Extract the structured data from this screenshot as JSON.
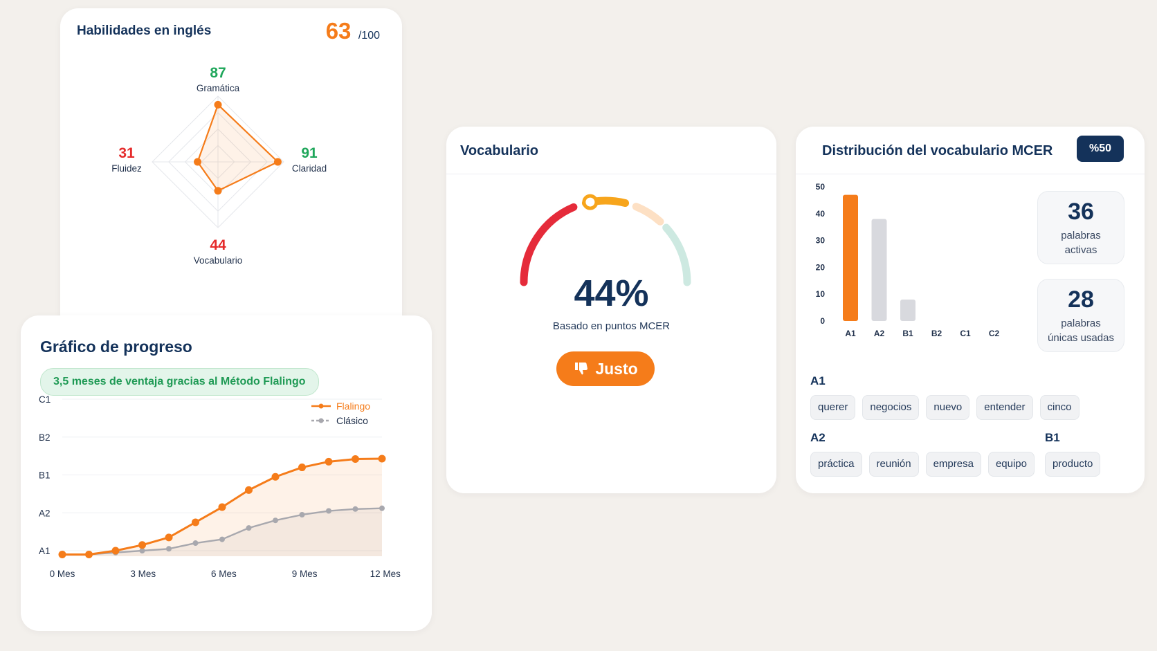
{
  "skills": {
    "title": "Habilidades en inglés",
    "score": "63",
    "score_max": "/100",
    "axes": [
      {
        "label": "Gramática",
        "value": 87,
        "color": "#1ea65a"
      },
      {
        "label": "Claridad",
        "value": 91,
        "color": "#1ea65a"
      },
      {
        "label": "Vocabulario",
        "value": 44,
        "color": "#e52b2b"
      },
      {
        "label": "Fluidez",
        "value": 31,
        "color": "#e52b2b"
      }
    ]
  },
  "progress": {
    "title": "Gráfico de progreso",
    "highlight": "3,5 meses de ventaja gracias al Método Flalingo"
  },
  "vocab": {
    "title": "Vocabulario",
    "percent": "44%",
    "subtitle": "Basado en puntos MCER",
    "verdict": "Justo"
  },
  "distribution": {
    "title": "Distribución del vocabulario MCER",
    "badge": "%50",
    "stats": [
      {
        "value": "36",
        "label_line1": "palabras",
        "label_line2": "activas"
      },
      {
        "value": "28",
        "label_line1": "palabras",
        "label_line2": "únicas usadas"
      }
    ],
    "groups": [
      {
        "level": "A1",
        "words": [
          "querer",
          "negocios",
          "nuevo",
          "entender",
          "cinco"
        ]
      },
      {
        "level": "A2",
        "words": [
          "práctica",
          "reunión",
          "empresa",
          "equipo"
        ]
      },
      {
        "level": "B1",
        "words": [
          "producto"
        ]
      }
    ]
  },
  "chart_data": [
    {
      "type": "radar",
      "categories": [
        "Gramática",
        "Claridad",
        "Vocabulario",
        "Fluidez"
      ],
      "values": [
        87,
        91,
        44,
        31
      ],
      "range": [
        0,
        100
      ],
      "color": "#f57c1a"
    },
    {
      "type": "line",
      "x": [
        0,
        1,
        2,
        3,
        4,
        5,
        6,
        7,
        8,
        9,
        10,
        11,
        12
      ],
      "x_ticks": [
        "0 Mes",
        "3 Mes",
        "6 Mes",
        "9 Mes",
        "12 Mes"
      ],
      "x_tick_values": [
        0,
        3,
        6,
        9,
        12
      ],
      "y_ticks": [
        "A1",
        "A2",
        "B1",
        "B2",
        "C1"
      ],
      "ylim": [
        0,
        4
      ],
      "legend_position": "top-right",
      "series": [
        {
          "name": "Flalingo",
          "color": "#f57c1a",
          "values": [
            -0.1,
            -0.1,
            0.0,
            0.15,
            0.35,
            0.75,
            1.15,
            1.6,
            1.95,
            2.2,
            2.35,
            2.42,
            2.43
          ]
        },
        {
          "name": "Clásico",
          "color": "#a8a8ae",
          "values": [
            -0.1,
            -0.1,
            -0.05,
            0.0,
            0.05,
            0.2,
            0.3,
            0.6,
            0.8,
            0.95,
            1.05,
            1.1,
            1.12
          ]
        }
      ]
    },
    {
      "type": "gauge",
      "value": 44,
      "range": [
        0,
        100
      ],
      "segments": [
        {
          "color": "#e52b3a"
        },
        {
          "color": "#f7a51c"
        },
        {
          "color": "#fde0c4"
        },
        {
          "color": "#cde9e1"
        }
      ]
    },
    {
      "type": "bar",
      "categories": [
        "A1",
        "A2",
        "B1",
        "B2",
        "C1",
        "C2"
      ],
      "values": [
        47,
        38,
        8,
        0,
        0,
        0
      ],
      "colors": [
        "#f57c1a",
        "#d8d9de",
        "#d8d9de",
        "#d8d9de",
        "#d8d9de",
        "#d8d9de"
      ],
      "ylim": [
        0,
        50
      ],
      "y_ticks": [
        0,
        10,
        20,
        30,
        40,
        50
      ]
    }
  ]
}
